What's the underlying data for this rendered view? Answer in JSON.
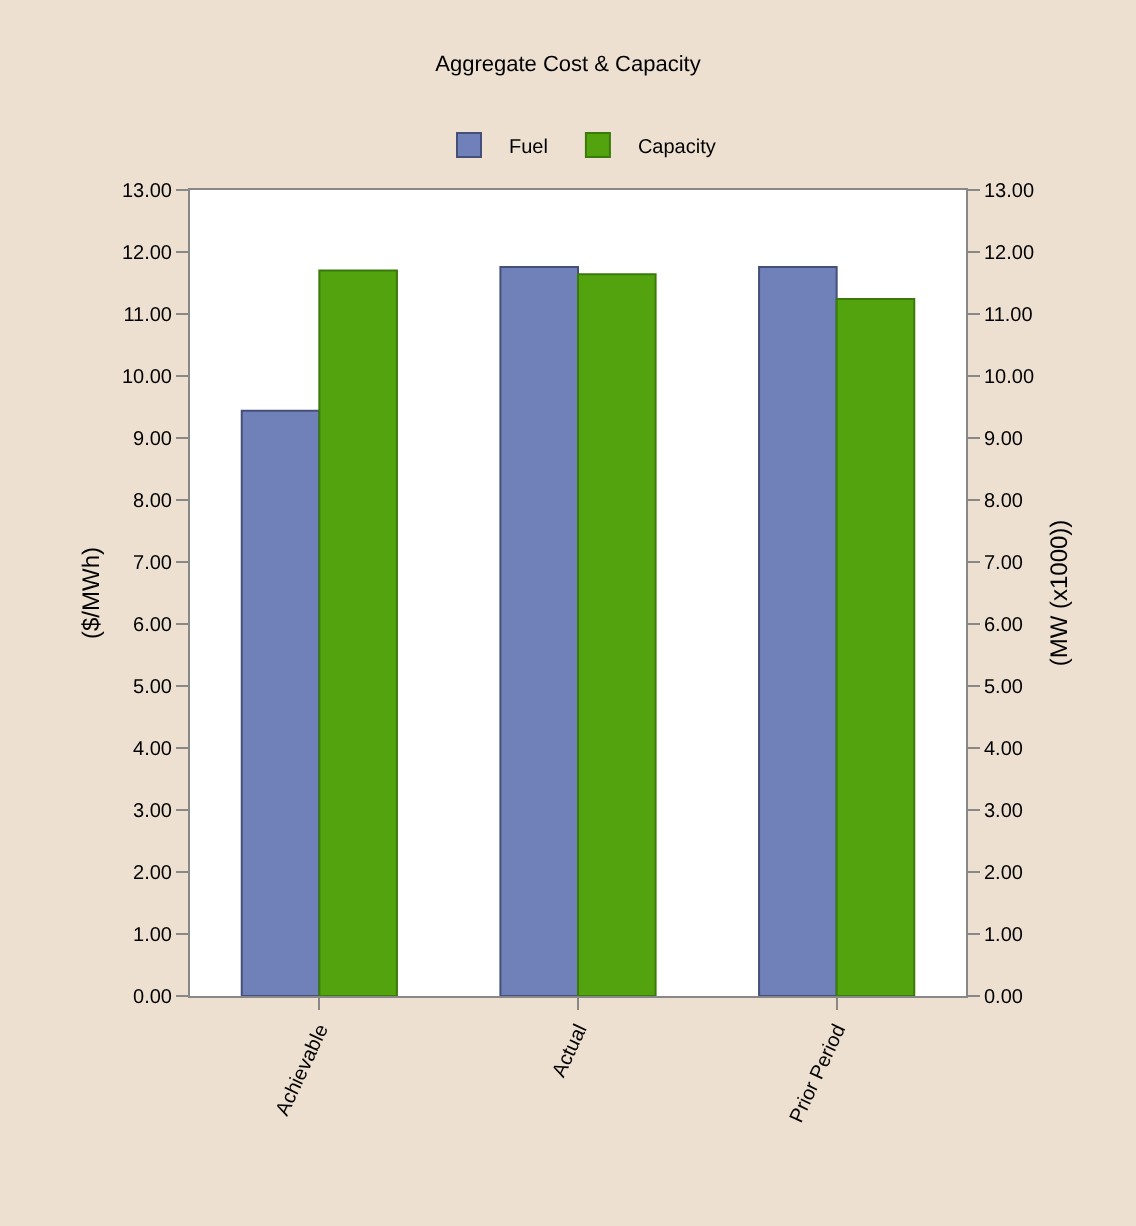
{
  "chart_data": {
    "type": "bar",
    "title": "Aggregate Cost & Capacity",
    "ylabel": "($/MWh)",
    "y2label": "(MW (x1000))",
    "categories": [
      "Achievable",
      "Actual",
      "Prior Period"
    ],
    "series": [
      {
        "name": "Fuel",
        "color": "#7080b8",
        "values": [
          9.44,
          11.76,
          11.76
        ]
      },
      {
        "name": "Capacity",
        "color": "#52a30e",
        "values": [
          11.7,
          11.64,
          11.24
        ],
        "axis": "y2"
      }
    ],
    "ylim": [
      0,
      13
    ],
    "yticks": [
      {
        "value": 0,
        "label": "0.00"
      },
      {
        "value": 1,
        "label": "1.00"
      },
      {
        "value": 2,
        "label": "2.00"
      },
      {
        "value": 3,
        "label": "3.00"
      },
      {
        "value": 4,
        "label": "4.00"
      },
      {
        "value": 5,
        "label": "5.00"
      },
      {
        "value": 6,
        "label": "6.00"
      },
      {
        "value": 7,
        "label": "7.00"
      },
      {
        "value": 8,
        "label": "8.00"
      },
      {
        "value": 9,
        "label": "9.00"
      },
      {
        "value": 10,
        "label": "10.00"
      },
      {
        "value": 11,
        "label": "11.00"
      },
      {
        "value": 12,
        "label": "12.00"
      },
      {
        "value": 13,
        "label": "13.00"
      }
    ],
    "y2lim": [
      0,
      13
    ],
    "y2ticks": [
      {
        "value": 0,
        "label": "0.00"
      },
      {
        "value": 1,
        "label": "1.00"
      },
      {
        "value": 2,
        "label": "2.00"
      },
      {
        "value": 3,
        "label": "3.00"
      },
      {
        "value": 4,
        "label": "4.00"
      },
      {
        "value": 5,
        "label": "5.00"
      },
      {
        "value": 6,
        "label": "6.00"
      },
      {
        "value": 7,
        "label": "7.00"
      },
      {
        "value": 8,
        "label": "8.00"
      },
      {
        "value": 9,
        "label": "9.00"
      },
      {
        "value": 10,
        "label": "10.00"
      },
      {
        "value": 11,
        "label": "11.00"
      },
      {
        "value": 12,
        "label": "12.00"
      },
      {
        "value": 13,
        "label": "13.00"
      }
    ],
    "legend": "top"
  }
}
